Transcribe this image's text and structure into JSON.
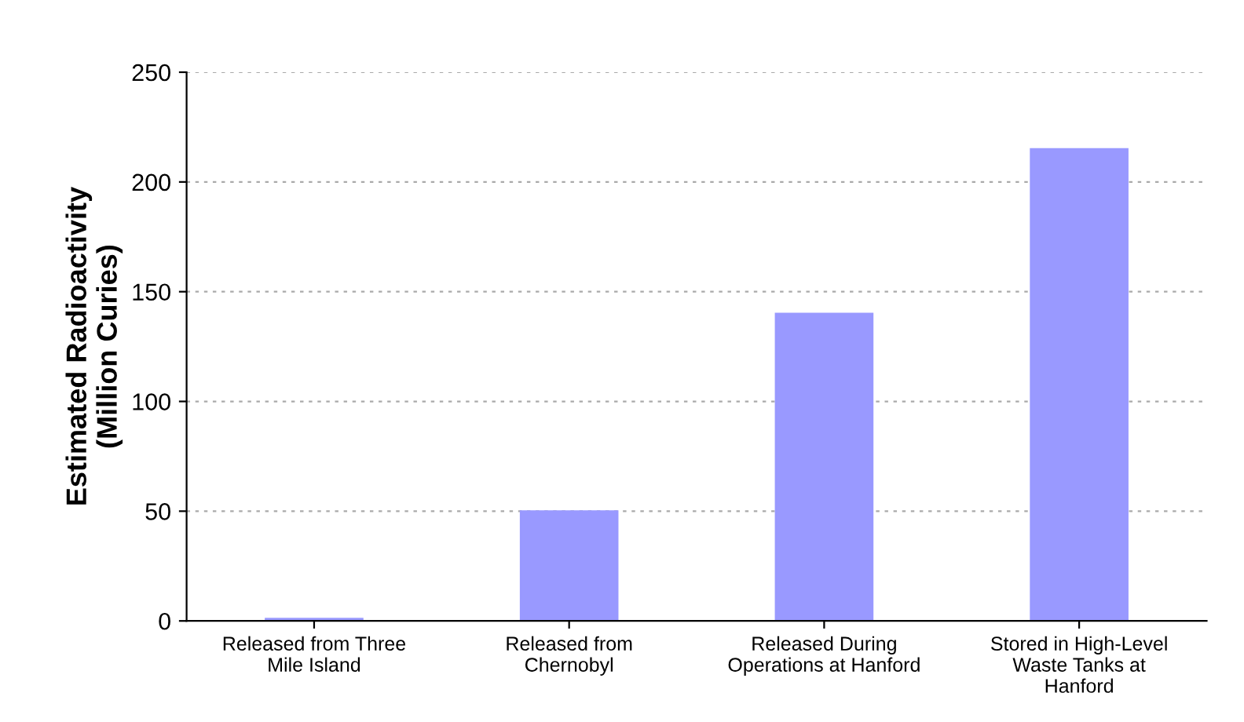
{
  "chart_data": {
    "type": "bar",
    "ylabel": "Estimated Radioactivity\n(Million Curies)",
    "categories": [
      "Released from Three\nMile Island",
      "Released from\nChernobyl",
      "Released During\nOperations at Hanford",
      "Stored in High-Level\nWaste Tanks at\nHanford"
    ],
    "values": [
      1,
      50,
      140,
      215
    ],
    "color": "#9999ff",
    "ylim": [
      0,
      250
    ],
    "yticks": [
      0,
      50,
      100,
      150,
      200,
      250
    ],
    "grid": "y"
  }
}
